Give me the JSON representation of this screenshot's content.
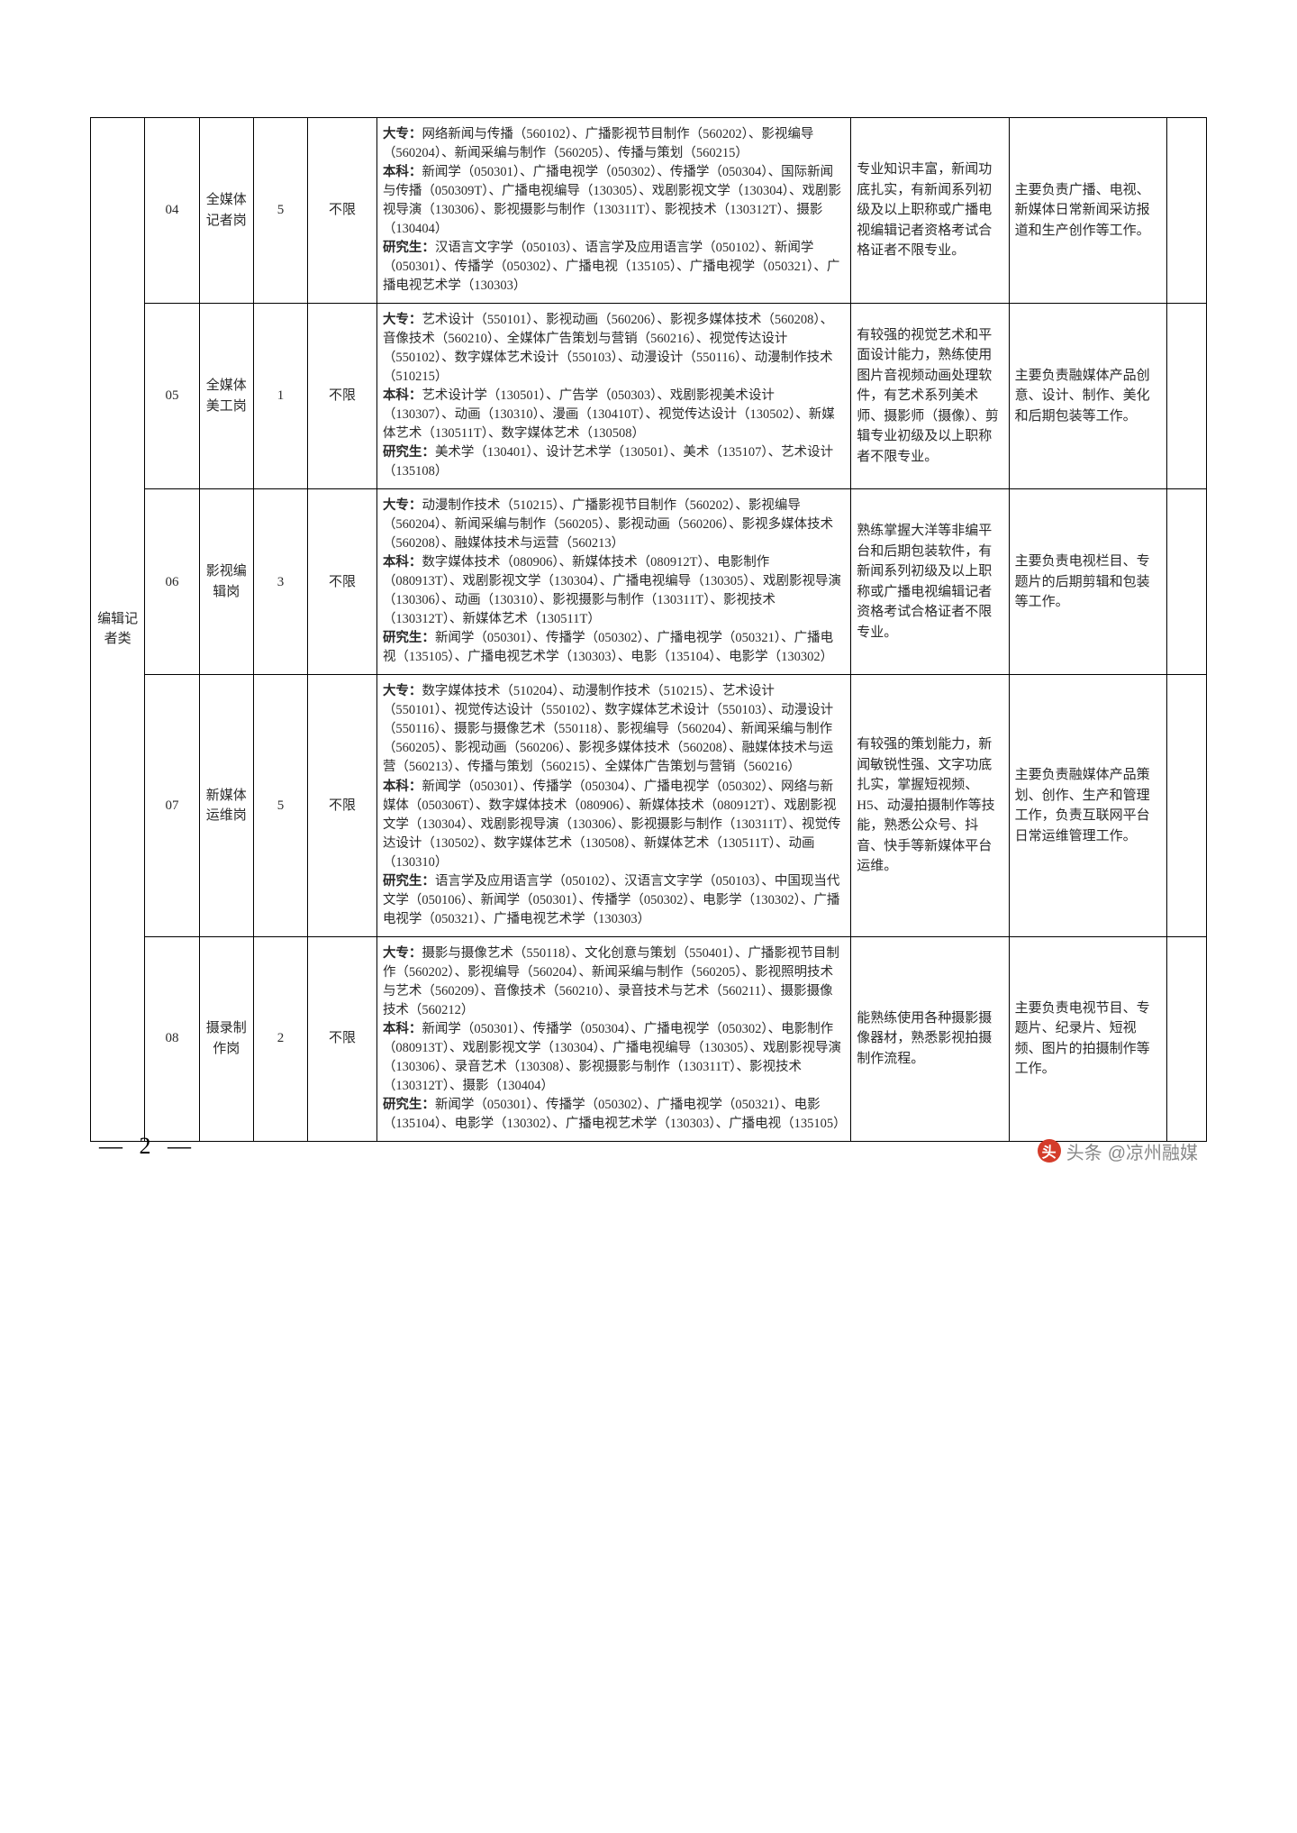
{
  "category": "编辑记者类",
  "page_number": "— 2 —",
  "watermark_prefix": "头条",
  "watermark_text": "@凉州融媒",
  "rows": [
    {
      "code": "04",
      "post": "全媒体记者岗",
      "num": "5",
      "limit": "不限",
      "major": "<b>大专：</b>网络新闻与传播（560102）、广播影视节目制作（560202）、影视编导（560204）、新闻采编与制作（560205）、传播与策划（560215）<br><b>本科：</b>新闻学（050301）、广播电视学（050302）、传播学（050304）、国际新闻与传播（050309T）、广播电视编导（130305）、戏剧影视文学（130304）、戏剧影视导演（130306）、影视摄影与制作（130311T）、影视技术（130312T）、摄影（130404）<br><b>研究生：</b>汉语言文字学（050103）、语言学及应用语言学（050102）、新闻学（050301）、传播学（050302）、广播电视（135105）、广播电视学（050321）、广播电视艺术学（130303）",
      "req": "专业知识丰富，新闻功底扎实，有新闻系列初级及以上职称或广播电视编辑记者资格考试合格证者不限专业。",
      "duty": "主要负责广播、电视、新媒体日常新闻采访报道和生产创作等工作。"
    },
    {
      "code": "05",
      "post": "全媒体美工岗",
      "num": "1",
      "limit": "不限",
      "major": "<b>大专：</b>艺术设计（550101）、影视动画（560206）、影视多媒体技术（560208）、音像技术（560210）、全媒体广告策划与营销（560216）、视觉传达设计（550102）、数字媒体艺术设计（550103）、动漫设计（550116）、动漫制作技术（510215）<br><b>本科：</b>艺术设计学（130501）、广告学（050303）、戏剧影视美术设计（130307）、动画（130310）、漫画（130410T）、视觉传达设计（130502）、新媒体艺术（130511T）、数字媒体艺术（130508）<br><b>研究生：</b>美术学（130401）、设计艺术学（130501）、美术（135107）、艺术设计（135108）",
      "req": "有较强的视觉艺术和平面设计能力，熟练使用图片音视频动画处理软件，有艺术系列美术师、摄影师（摄像）、剪辑专业初级及以上职称者不限专业。",
      "duty": "主要负责融媒体产品创意、设计、制作、美化和后期包装等工作。"
    },
    {
      "code": "06",
      "post": "影视编辑岗",
      "num": "3",
      "limit": "不限",
      "major": "<b>大专：</b>动漫制作技术（510215）、广播影视节目制作（560202）、影视编导（560204）、新闻采编与制作（560205）、影视动画（560206）、影视多媒体技术（560208）、融媒体技术与运营（560213）<br><b>本科：</b>数字媒体技术（080906）、新媒体技术（080912T）、电影制作（080913T）、戏剧影视文学（130304）、广播电视编导（130305）、戏剧影视导演（130306）、动画（130310）、影视摄影与制作（130311T）、影视技术（130312T）、新媒体艺术（130511T）<br><b>研究生：</b>新闻学（050301）、传播学（050302）、广播电视学（050321）、广播电视（135105）、广播电视艺术学（130303）、电影（135104）、电影学（130302）",
      "req": "熟练掌握大洋等非编平台和后期包装软件，有新闻系列初级及以上职称或广播电视编辑记者资格考试合格证者不限专业。",
      "duty": "主要负责电视栏目、专题片的后期剪辑和包装等工作。"
    },
    {
      "code": "07",
      "post": "新媒体运维岗",
      "num": "5",
      "limit": "不限",
      "major": "<b>大专：</b>数字媒体技术（510204）、动漫制作技术（510215）、艺术设计（550101）、视觉传达设计（550102）、数字媒体艺术设计（550103）、动漫设计（550116）、摄影与摄像艺术（550118）、影视编导（560204）、新闻采编与制作（560205）、影视动画（560206）、影视多媒体技术（560208）、融媒体技术与运营（560213）、传播与策划（560215）、全媒体广告策划与营销（560216）<br><b>本科：</b>新闻学（050301）、传播学（050304）、广播电视学（050302）、网络与新媒体（050306T）、数字媒体技术（080906）、新媒体技术（080912T）、戏剧影视文学（130304）、戏剧影视导演（130306）、影视摄影与制作（130311T）、视觉传达设计（130502）、数字媒体艺术（130508）、新媒体艺术（130511T）、动画（130310）<br><b>研究生：</b>语言学及应用语言学（050102）、汉语言文字学（050103）、中国现当代文学（050106）、新闻学（050301）、传播学（050302）、电影学（130302）、广播电视学（050321）、广播电视艺术学（130303）",
      "req": "有较强的策划能力，新闻敏锐性强、文字功底扎实，掌握短视频、H5、动漫拍摄制作等技能，熟悉公众号、抖音、快手等新媒体平台运维。",
      "duty": "主要负责融媒体产品策划、创作、生产和管理工作，负责互联网平台日常运维管理工作。"
    },
    {
      "code": "08",
      "post": "摄录制作岗",
      "num": "2",
      "limit": "不限",
      "major": "<b>大专：</b>摄影与摄像艺术（550118）、文化创意与策划（550401）、广播影视节目制作（560202）、影视编导（560204）、新闻采编与制作（560205）、影视照明技术与艺术（560209）、音像技术（560210）、录音技术与艺术（560211）、摄影摄像技术（560212）<br><b>本科：</b>新闻学（050301）、传播学（050304）、广播电视学（050302）、电影制作（080913T）、戏剧影视文学（130304）、广播电视编导（130305）、戏剧影视导演（130306）、录音艺术（130308）、影视摄影与制作（130311T）、影视技术（130312T）、摄影（130404）<br><b>研究生：</b>新闻学（050301）、传播学（050302）、广播电视学（050321）、电影（135104）、电影学（130302）、广播电视艺术学（130303）、广播电视（135105）",
      "req": "能熟练使用各种摄影摄像器材，熟悉影视拍摄制作流程。",
      "duty": "主要负责电视节目、专题片、纪录片、短视频、图片的拍摄制作等工作。"
    }
  ]
}
